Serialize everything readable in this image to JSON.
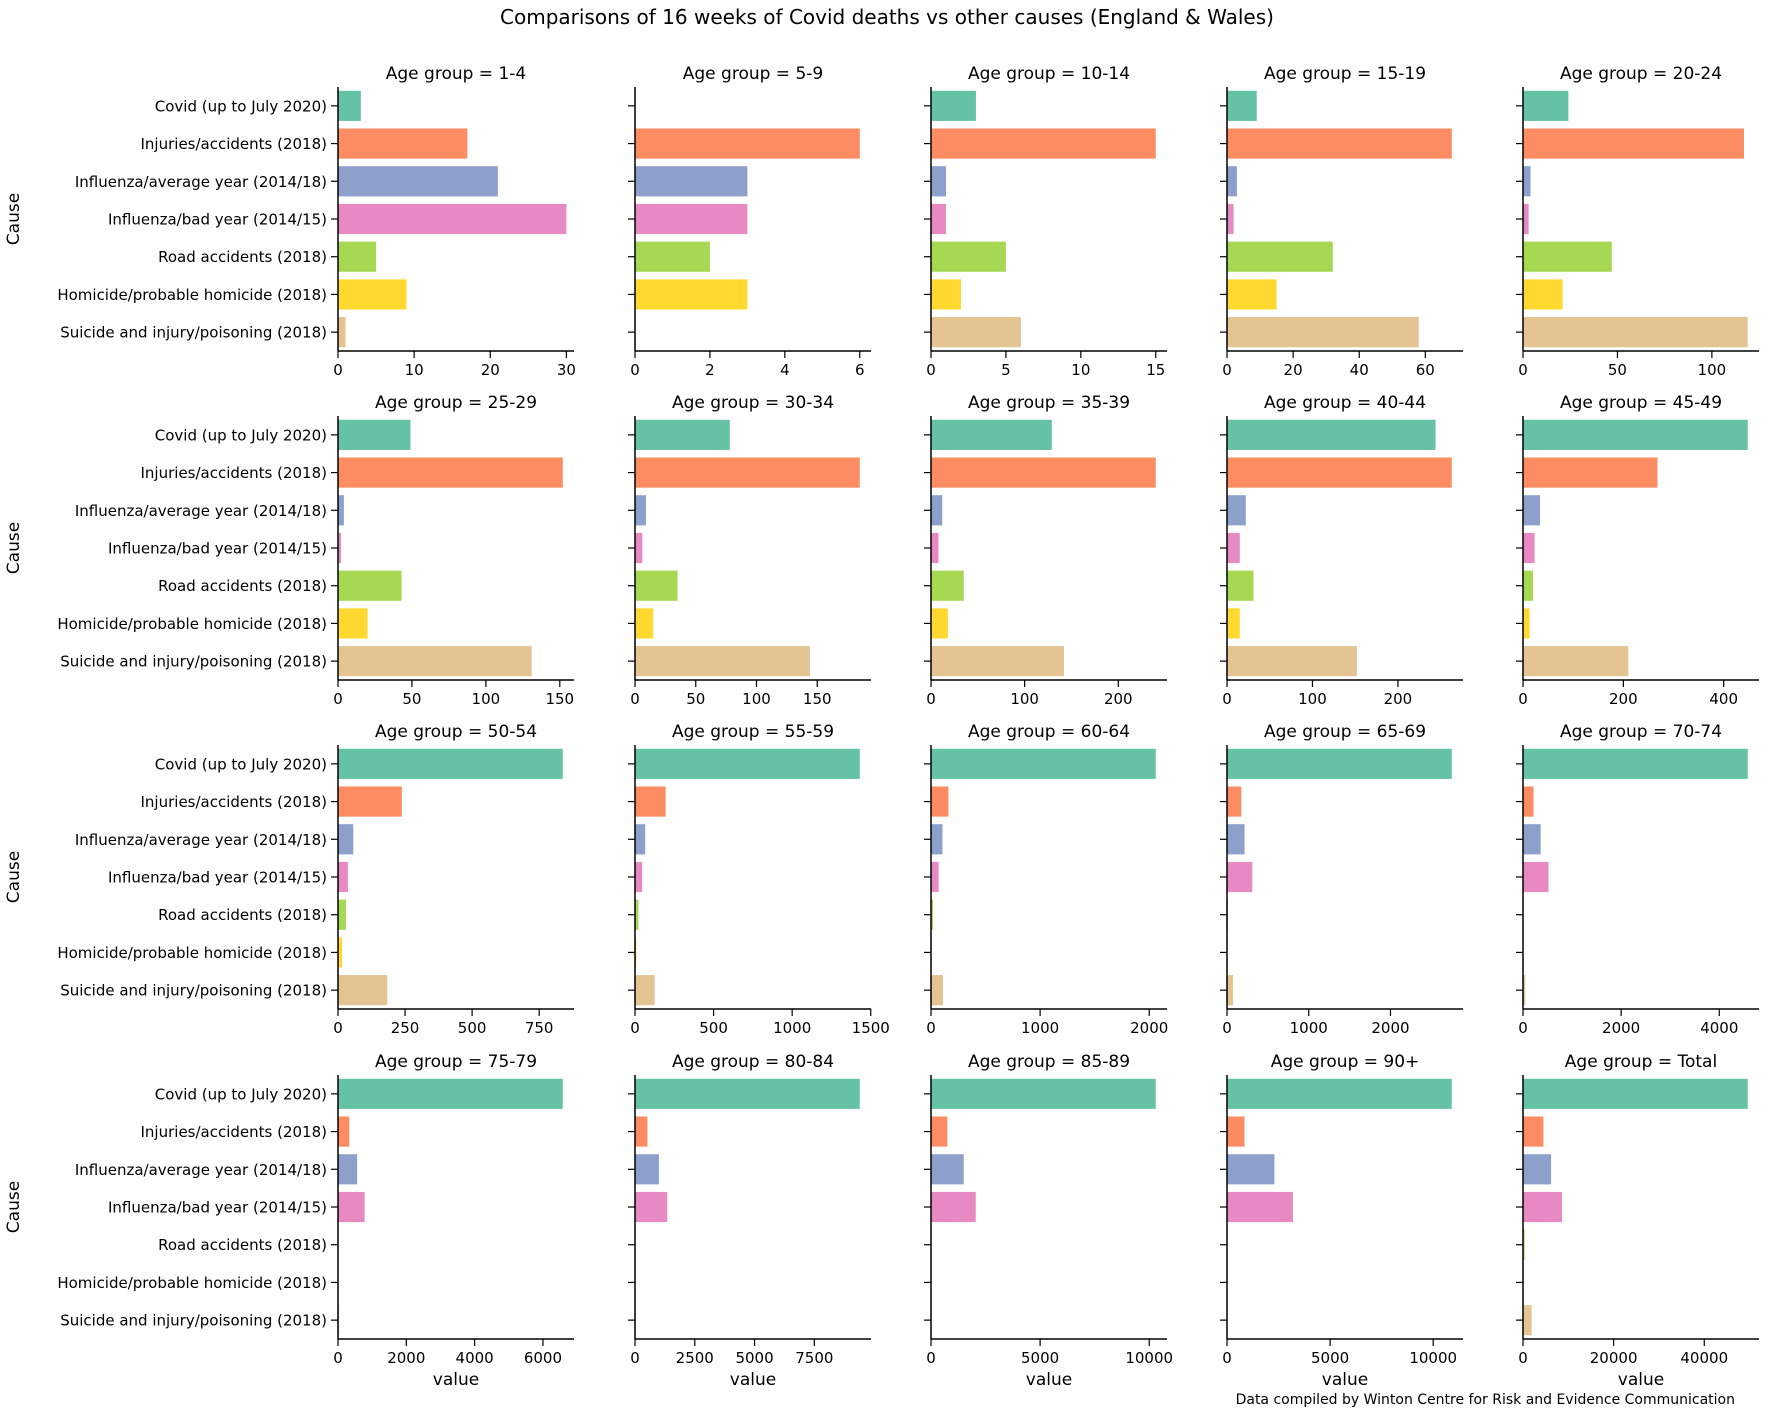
{
  "title": "Comparisons of 16 weeks of Covid deaths vs other causes (England & Wales)",
  "caption": "Data compiled by Winton Centre for Risk and Evidence Communication",
  "ylabel": "Cause",
  "xlabel": "value",
  "palette": [
    "#66c2a5",
    "#fc8d62",
    "#8da0cb",
    "#e78ac3",
    "#a6d854",
    "#ffd92f",
    "#e5c494"
  ],
  "chart_data": {
    "type": "bar",
    "orientation": "horizontal",
    "layout": "faceted 4x5 grid, each panel with its own x-axis scale",
    "categories": [
      "Covid (up to July 2020)",
      "Injuries/accidents (2018)",
      "Influenza/average year (2014/18)",
      "Influenza/bad year (2014/15)",
      "Road accidents (2018)",
      "Homicide/probable homicide (2018)",
      "Suicide and injury/poisoning (2018)"
    ],
    "panels": [
      {
        "title": "Age group = 1-4",
        "values": [
          3,
          17,
          21,
          30,
          5,
          9,
          1
        ],
        "xlim": [
          0,
          31
        ],
        "ticks": [
          0,
          10,
          20,
          30
        ]
      },
      {
        "title": "Age group = 5-9",
        "values": [
          0,
          6,
          3,
          3,
          2,
          3,
          0
        ],
        "xlim": [
          0,
          6.3
        ],
        "ticks": [
          0,
          2,
          4,
          6
        ]
      },
      {
        "title": "Age group = 10-14",
        "values": [
          3,
          15,
          1,
          1,
          5,
          2,
          6
        ],
        "xlim": [
          0,
          15.75
        ],
        "ticks": [
          0,
          5,
          10,
          15
        ]
      },
      {
        "title": "Age group = 15-19",
        "values": [
          9,
          68,
          3,
          2,
          32,
          15,
          58
        ],
        "xlim": [
          0,
          71.4
        ],
        "ticks": [
          0,
          20,
          40,
          60
        ]
      },
      {
        "title": "Age group = 20-24",
        "values": [
          24,
          117,
          4,
          3,
          47,
          21,
          119
        ],
        "xlim": [
          0,
          124.95
        ],
        "ticks": [
          0,
          50,
          100
        ]
      },
      {
        "title": "Age group = 25-29",
        "values": [
          49,
          152,
          4,
          2,
          43,
          20,
          131
        ],
        "xlim": [
          0,
          159.6
        ],
        "ticks": [
          0,
          50,
          100,
          150
        ]
      },
      {
        "title": "Age group = 30-34",
        "values": [
          78,
          185,
          9,
          6,
          35,
          15,
          144
        ],
        "xlim": [
          0,
          194.25
        ],
        "ticks": [
          0,
          50,
          100,
          150
        ]
      },
      {
        "title": "Age group = 35-39",
        "values": [
          129,
          240,
          12,
          8,
          35,
          18,
          142
        ],
        "xlim": [
          0,
          252
        ],
        "ticks": [
          0,
          100,
          200
        ]
      },
      {
        "title": "Age group = 40-44",
        "values": [
          244,
          263,
          22,
          15,
          31,
          15,
          152
        ],
        "xlim": [
          0,
          276.15
        ],
        "ticks": [
          0,
          100,
          200
        ]
      },
      {
        "title": "Age group = 45-49",
        "values": [
          448,
          268,
          34,
          23,
          20,
          13,
          210
        ],
        "xlim": [
          0,
          470.4
        ],
        "ticks": [
          0,
          200,
          400
        ]
      },
      {
        "title": "Age group = 50-54",
        "values": [
          838,
          238,
          57,
          37,
          30,
          15,
          184
        ],
        "xlim": [
          0,
          879.9
        ],
        "ticks": [
          0,
          250,
          500,
          750
        ]
      },
      {
        "title": "Age group = 55-59",
        "values": [
          1430,
          195,
          65,
          45,
          22,
          8,
          125
        ],
        "xlim": [
          0,
          1501.5
        ],
        "ticks": [
          0,
          500,
          1000,
          1500
        ]
      },
      {
        "title": "Age group = 60-64",
        "values": [
          2060,
          160,
          105,
          70,
          18,
          6,
          110
        ],
        "xlim": [
          0,
          2163
        ],
        "ticks": [
          0,
          1000,
          2000
        ]
      },
      {
        "title": "Age group = 65-69",
        "values": [
          2750,
          175,
          215,
          310,
          12,
          4,
          75
        ],
        "xlim": [
          0,
          2887.5
        ],
        "ticks": [
          0,
          1000,
          2000
        ]
      },
      {
        "title": "Age group = 70-74",
        "values": [
          4580,
          215,
          360,
          520,
          12,
          3,
          45
        ],
        "xlim": [
          0,
          4809
        ],
        "ticks": [
          0,
          2000,
          4000
        ]
      },
      {
        "title": "Age group = 75-79",
        "values": [
          6580,
          330,
          560,
          780,
          10,
          2,
          35
        ],
        "xlim": [
          0,
          6909
        ],
        "ticks": [
          0,
          2000,
          4000,
          6000
        ]
      },
      {
        "title": "Age group = 80-84",
        "values": [
          9400,
          520,
          1000,
          1350,
          8,
          2,
          30
        ],
        "xlim": [
          0,
          9870
        ],
        "ticks": [
          0,
          2500,
          5000,
          7500
        ]
      },
      {
        "title": "Age group = 85-89",
        "values": [
          10300,
          750,
          1500,
          2050,
          5,
          1,
          25
        ],
        "xlim": [
          0,
          10815
        ],
        "ticks": [
          0,
          5000,
          10000
        ]
      },
      {
        "title": "Age group = 90+",
        "values": [
          10900,
          850,
          2300,
          3200,
          3,
          1,
          20
        ],
        "xlim": [
          0,
          11445
        ],
        "ticks": [
          0,
          5000,
          10000
        ]
      },
      {
        "title": "Age group = Total",
        "values": [
          49600,
          4500,
          6200,
          8600,
          350,
          150,
          1900
        ],
        "xlim": [
          0,
          52080
        ],
        "ticks": [
          0,
          20000,
          40000
        ]
      }
    ]
  }
}
